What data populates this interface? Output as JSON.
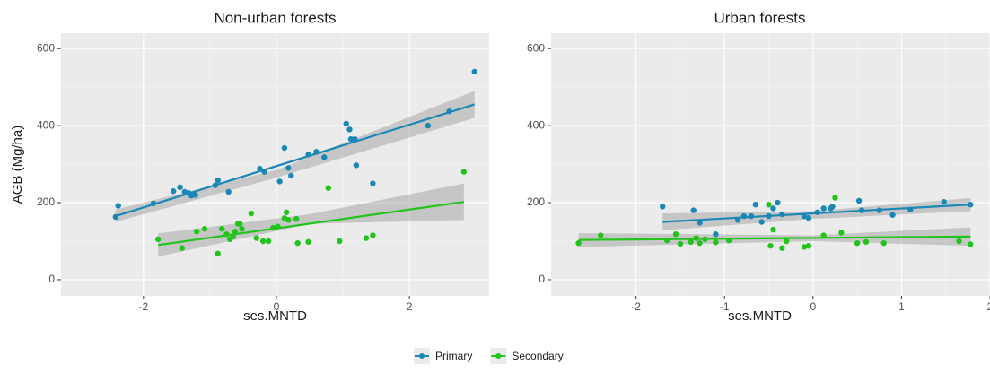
{
  "chart_data": [
    {
      "type": "scatter",
      "title": "Non-urban forests",
      "xlabel": "ses.MNTD",
      "ylabel": "AGB (Mg/ha)",
      "xlim": [
        -3.24,
        3.2
      ],
      "ylim": [
        -42,
        640
      ],
      "xticks": [
        -2,
        0,
        2
      ],
      "yticks": [
        0,
        200,
        400,
        600
      ],
      "grid": true,
      "series": [
        {
          "name": "Primary",
          "color": "#1a87b5",
          "x": [
            -2.42,
            -2.38,
            -1.85,
            -1.55,
            -1.45,
            -1.38,
            -1.32,
            -1.28,
            -1.22,
            -0.92,
            -0.88,
            -0.72,
            -0.25,
            -0.18,
            0.05,
            0.12,
            0.18,
            0.22,
            0.48,
            0.6,
            0.72,
            1.05,
            1.1,
            1.12,
            1.18,
            1.2,
            1.45,
            2.28,
            2.6,
            2.98
          ],
          "y": [
            163,
            192,
            198,
            230,
            240,
            228,
            225,
            218,
            220,
            245,
            258,
            228,
            288,
            280,
            255,
            342,
            290,
            270,
            325,
            332,
            318,
            405,
            390,
            365,
            365,
            297,
            250,
            400,
            437,
            540
          ],
          "fit": {
            "x": [
              -2.42,
              2.98
            ],
            "y": [
              165,
              455
            ]
          },
          "band": {
            "x": [
              -2.42,
              0,
              2.98
            ],
            "lower": [
              150,
              265,
              420
            ],
            "upper": [
              182,
              285,
              490
            ]
          }
        },
        {
          "name": "Secondary",
          "color": "#22c41c",
          "x": [
            -1.78,
            -1.42,
            -1.2,
            -1.08,
            -0.88,
            -0.82,
            -0.75,
            -0.7,
            -0.65,
            -0.62,
            -0.58,
            -0.55,
            -0.52,
            -0.38,
            -0.3,
            -0.2,
            -0.12,
            -0.05,
            0.02,
            0.12,
            0.15,
            0.18,
            0.3,
            0.32,
            0.48,
            0.78,
            0.95,
            1.35,
            1.45,
            2.82
          ],
          "y": [
            105,
            82,
            125,
            132,
            68,
            132,
            118,
            105,
            112,
            125,
            145,
            145,
            132,
            172,
            108,
            100,
            100,
            135,
            138,
            160,
            175,
            155,
            158,
            95,
            98,
            238,
            100,
            108,
            115,
            280
          ],
          "fit": {
            "x": [
              -1.78,
              2.82
            ],
            "y": [
              90,
              202
            ]
          },
          "band": {
            "x": [
              -1.78,
              0.5,
              2.82
            ],
            "lower": [
              60,
              145,
              155
            ],
            "upper": [
              120,
              170,
              250
            ]
          }
        }
      ]
    },
    {
      "type": "scatter",
      "title": "Urban forests",
      "xlabel": "ses.MNTD",
      "xlim": [
        -2.96,
        2.0
      ],
      "ylim": [
        -42,
        640
      ],
      "xticks": [
        -2,
        -1,
        0,
        1,
        2
      ],
      "yticks": [
        0,
        200,
        400,
        600
      ],
      "grid": true,
      "series": [
        {
          "color": "#1a87b5",
          "x": [
            -1.7,
            -1.35,
            -1.28,
            -1.1,
            -0.85,
            -0.78,
            -0.7,
            -0.65,
            -0.58,
            -0.5,
            -0.45,
            -0.4,
            -0.35,
            -0.1,
            -0.05,
            0.05,
            0.12,
            0.2,
            0.22,
            0.52,
            0.55,
            0.75,
            0.9,
            1.1,
            1.48,
            1.78
          ],
          "y": [
            190,
            180,
            148,
            118,
            155,
            165,
            165,
            195,
            150,
            165,
            185,
            200,
            170,
            165,
            160,
            175,
            185,
            185,
            190,
            205,
            180,
            180,
            168,
            182,
            202,
            195
          ],
          "fit": {
            "x": [
              -1.7,
              1.78
            ],
            "y": [
              150,
              195
            ]
          },
          "band": {
            "x": [
              -1.7,
              0,
              1.78
            ],
            "lower": [
              128,
              158,
              178
            ],
            "upper": [
              172,
              178,
              212
            ]
          }
        },
        {
          "color": "#22c41c",
          "x": [
            -2.65,
            -2.4,
            -1.65,
            -1.55,
            -1.5,
            -1.38,
            -1.32,
            -1.28,
            -1.22,
            -1.1,
            -0.95,
            -0.5,
            -0.48,
            -0.45,
            -0.35,
            -0.3,
            -0.1,
            -0.05,
            0.12,
            0.25,
            0.32,
            0.5,
            0.6,
            0.8,
            1.65,
            1.78
          ],
          "y": [
            95,
            115,
            102,
            118,
            93,
            98,
            108,
            95,
            105,
            97,
            102,
            195,
            88,
            130,
            82,
            100,
            85,
            88,
            115,
            213,
            122,
            95,
            98,
            95,
            100,
            92
          ],
          "fit": {
            "x": [
              -2.65,
              1.78
            ],
            "y": [
              103,
              112
            ]
          },
          "band": {
            "x": [
              -2.65,
              0,
              1.78
            ],
            "lower": [
              85,
              100,
              88
            ],
            "upper": [
              121,
              115,
              136
            ]
          }
        }
      ]
    }
  ]
}
